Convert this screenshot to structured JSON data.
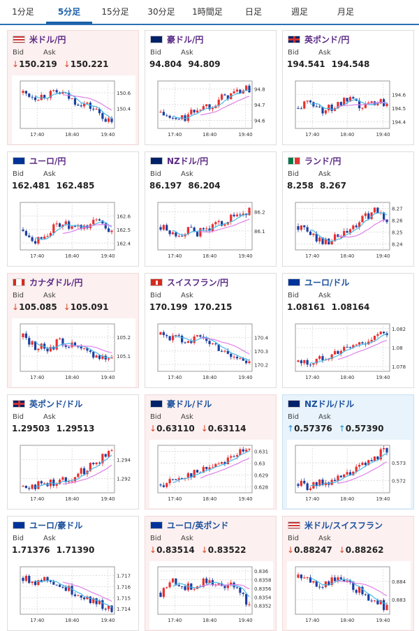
{
  "tabs": [
    {
      "label": "1分足",
      "active": false
    },
    {
      "label": "5分足",
      "active": true
    },
    {
      "label": "15分足",
      "active": false
    },
    {
      "label": "30分足",
      "active": false
    },
    {
      "label": "1時間足",
      "active": false
    },
    {
      "label": "日足",
      "active": false
    },
    {
      "label": "週足",
      "active": false
    },
    {
      "label": "月足",
      "active": false
    }
  ],
  "labels": {
    "bid": "Bid",
    "ask": "Ask"
  },
  "x_ticks": [
    "17:40",
    "18:40",
    "19:40"
  ],
  "colors": {
    "up_candle": "#e83030",
    "down_candle": "#1c3fa0",
    "ma_short": "#46b8e8",
    "ma_long": "#de80e8",
    "arrow_down": "#dd4422",
    "arrow_up": "#1b8fd6"
  },
  "cards": [
    {
      "flag": "us-flag",
      "name": "米ドル/円",
      "bid": "150.219",
      "ask": "150.221",
      "dir": "down",
      "name_color": "purple",
      "chart": {
        "ticks": [
          "150.6",
          "150.4"
        ],
        "ylim": [
          150.15,
          150.75
        ],
        "trend": [
          150.6,
          150.55,
          150.58,
          150.6,
          150.5,
          150.45,
          150.35,
          150.2
        ]
      }
    },
    {
      "flag": "au-flag",
      "name": "豪ドル/円",
      "bid": "94.804",
      "ask": "94.809",
      "dir": "",
      "name_color": "purple",
      "chart": {
        "ticks": [
          "94.8",
          "94.7",
          "94.6"
        ],
        "ylim": [
          94.55,
          94.85
        ],
        "trend": [
          94.65,
          94.6,
          94.62,
          94.68,
          94.7,
          94.75,
          94.78,
          94.8
        ]
      }
    },
    {
      "flag": "gb-flag",
      "name": "英ポンド/円",
      "bid": "194.541",
      "ask": "194.548",
      "dir": "",
      "name_color": "purple",
      "chart": {
        "ticks": [
          "194.6",
          "194.5",
          "194.4"
        ],
        "ylim": [
          194.35,
          194.7
        ],
        "trend": [
          194.5,
          194.55,
          194.48,
          194.52,
          194.56,
          194.5,
          194.55,
          194.54
        ]
      }
    },
    {
      "flag": "eu-flag",
      "name": "ユーロ/円",
      "bid": "162.481",
      "ask": "162.485",
      "dir": "",
      "name_color": "purple",
      "chart": {
        "ticks": [
          "162.6",
          "162.5",
          "162.4"
        ],
        "ylim": [
          162.35,
          162.7
        ],
        "trend": [
          162.5,
          162.42,
          162.48,
          162.55,
          162.5,
          162.52,
          162.58,
          162.48
        ]
      }
    },
    {
      "flag": "nz-flag",
      "name": "NZドル/円",
      "bid": "86.197",
      "ask": "86.204",
      "dir": "",
      "name_color": "purple",
      "chart": {
        "ticks": [
          "86.2",
          "86.1"
        ],
        "ylim": [
          86.0,
          86.25
        ],
        "trend": [
          86.12,
          86.08,
          86.1,
          86.09,
          86.12,
          86.15,
          86.18,
          86.2
        ]
      }
    },
    {
      "flag": "za-flag",
      "name": "ランド/円",
      "bid": "8.258",
      "ask": "8.267",
      "dir": "",
      "name_color": "purple",
      "chart": {
        "ticks": [
          "8.27",
          "8.26",
          "8.25",
          "8.24"
        ],
        "ylim": [
          8.235,
          8.275
        ],
        "trend": [
          8.255,
          8.248,
          8.242,
          8.245,
          8.25,
          8.26,
          8.268,
          8.26
        ]
      }
    },
    {
      "flag": "ca-flag",
      "name": "カナダドル/円",
      "bid": "105.085",
      "ask": "105.091",
      "dir": "down",
      "name_color": "purple",
      "chart": {
        "ticks": [
          "105.2",
          "105.1"
        ],
        "ylim": [
          105.02,
          105.27
        ],
        "trend": [
          105.2,
          105.15,
          105.14,
          105.18,
          105.15,
          105.12,
          105.1,
          105.09
        ]
      }
    },
    {
      "flag": "ch-flag",
      "name": "スイスフラン/円",
      "bid": "170.199",
      "ask": "170.215",
      "dir": "",
      "name_color": "purple",
      "chart": {
        "ticks": [
          "170.4",
          "170.3",
          "170.2"
        ],
        "ylim": [
          170.15,
          170.5
        ],
        "trend": [
          170.42,
          170.4,
          170.38,
          170.4,
          170.36,
          170.3,
          170.25,
          170.2
        ]
      }
    },
    {
      "flag": "eu-flag",
      "name": "ユーロ/ドル",
      "bid": "1.08161",
      "ask": "1.08164",
      "dir": "",
      "name_color": "blue",
      "chart": {
        "ticks": [
          "1.082",
          "1.08",
          "1.078"
        ],
        "ylim": [
          1.0775,
          1.0825
        ],
        "trend": [
          1.0785,
          1.0783,
          1.079,
          1.0795,
          1.08,
          1.0805,
          1.081,
          1.0816
        ]
      }
    },
    {
      "flag": "gb-flag",
      "name": "英ポンド/ドル",
      "bid": "1.29503",
      "ask": "1.29513",
      "dir": "",
      "name_color": "blue",
      "chart": {
        "ticks": [
          "1.294",
          "1.292"
        ],
        "ylim": [
          1.2905,
          1.2955
        ],
        "trend": [
          1.2912,
          1.2913,
          1.2915,
          1.2918,
          1.2922,
          1.293,
          1.294,
          1.295
        ]
      }
    },
    {
      "flag": "au-flag",
      "name": "豪ドル/ドル",
      "bid": "0.63110",
      "ask": "0.63114",
      "dir": "down",
      "name_color": "blue",
      "chart": {
        "ticks": [
          "0.631",
          "0.63",
          "0.629",
          "0.628"
        ],
        "ylim": [
          0.6275,
          0.6315
        ],
        "trend": [
          0.6282,
          0.6285,
          0.629,
          0.6292,
          0.6298,
          0.6302,
          0.6308,
          0.631
        ]
      }
    },
    {
      "flag": "nz-flag",
      "name": "NZドル/ドル",
      "bid": "0.57376",
      "ask": "0.57390",
      "dir": "up",
      "name_color": "blue",
      "chart": {
        "ticks": [
          "0.573",
          "0.572"
        ],
        "ylim": [
          0.5713,
          0.574
        ],
        "trend": [
          0.5718,
          0.5716,
          0.5719,
          0.572,
          0.5724,
          0.5728,
          0.5733,
          0.5738
        ]
      }
    },
    {
      "flag": "eu-flag",
      "name": "ユーロ/豪ドル",
      "bid": "1.71376",
      "ask": "1.71390",
      "dir": "",
      "name_color": "blue",
      "chart": {
        "ticks": [
          "1.717",
          "1.716",
          "1.715",
          "1.714"
        ],
        "ylim": [
          1.7135,
          1.7178
        ],
        "trend": [
          1.7168,
          1.7165,
          1.7168,
          1.716,
          1.7155,
          1.715,
          1.7145,
          1.7138
        ]
      }
    },
    {
      "flag": "eu-flag",
      "name": "ユーロ/英ポンド",
      "bid": "0.83514",
      "ask": "0.83522",
      "dir": "down",
      "name_color": "blue",
      "chart": {
        "ticks": [
          "0.836",
          "0.8358",
          "0.8356",
          "0.8354",
          "0.8352"
        ],
        "ylim": [
          0.835,
          0.8361
        ],
        "trend": [
          0.8355,
          0.8358,
          0.8356,
          0.8357,
          0.8358,
          0.8356,
          0.8357,
          0.8352
        ]
      }
    },
    {
      "flag": "us-flag",
      "name": "米ドル/スイスフラン",
      "bid": "0.88247",
      "ask": "0.88262",
      "dir": "down",
      "name_color": "blue",
      "chart": {
        "ticks": [
          "0.884",
          "0.883"
        ],
        "ylim": [
          0.8822,
          0.8848
        ],
        "trend": [
          0.8842,
          0.884,
          0.8838,
          0.8842,
          0.8838,
          0.8834,
          0.883,
          0.8825
        ]
      }
    }
  ]
}
